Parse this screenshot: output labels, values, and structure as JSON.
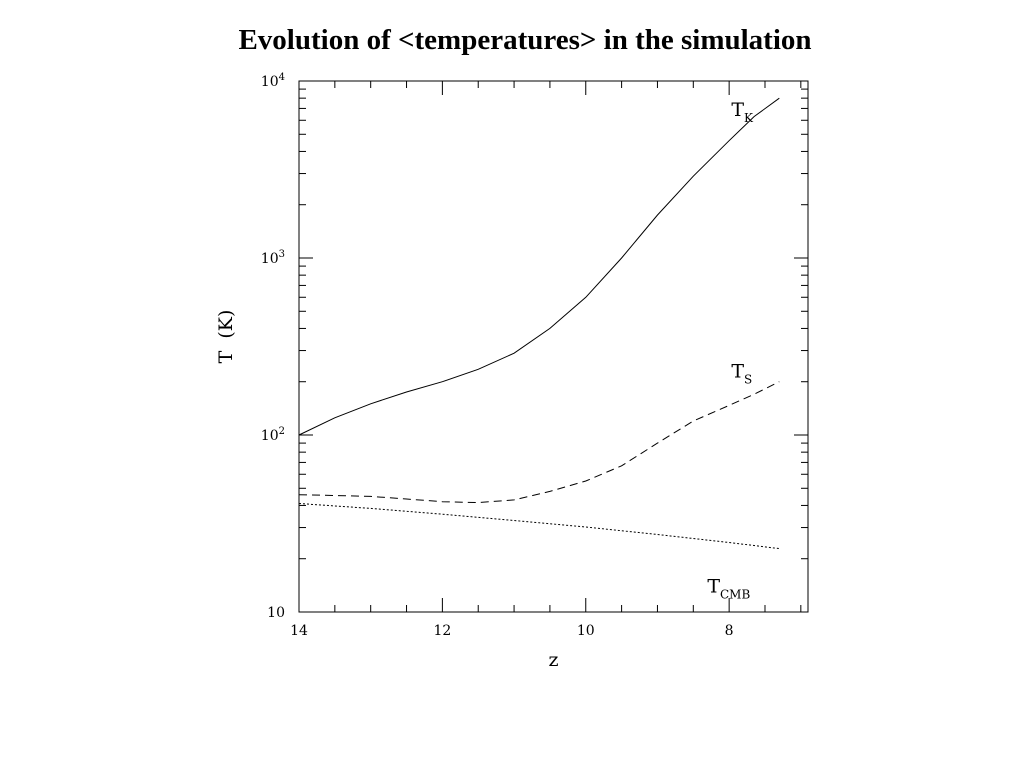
{
  "slide": {
    "title": "Evolution of  <temperatures>  in the simulation"
  },
  "chart_data": {
    "type": "line",
    "xlabel": "z",
    "ylabel": "T  (K)",
    "xlim": [
      14,
      6.9
    ],
    "ylim": [
      10,
      10000
    ],
    "y_scale": "log",
    "x_reversed": true,
    "x_ticks": [
      14,
      12,
      10,
      8
    ],
    "y_ticks": [
      {
        "value": 10,
        "base": "10",
        "exp": ""
      },
      {
        "value": 100,
        "base": "10",
        "exp": "2"
      },
      {
        "value": 1000,
        "base": "10",
        "exp": "3"
      },
      {
        "value": 10000,
        "base": "10",
        "exp": "4"
      }
    ],
    "grid": false,
    "legend": "none",
    "series": [
      {
        "name": "T_K",
        "label_main": "T",
        "label_sub": "K",
        "line_style": "solid",
        "points": [
          [
            14,
            100
          ],
          [
            13.5,
            125
          ],
          [
            13,
            150
          ],
          [
            12.5,
            175
          ],
          [
            12,
            200
          ],
          [
            11.5,
            235
          ],
          [
            11,
            290
          ],
          [
            10.5,
            400
          ],
          [
            10,
            600
          ],
          [
            9.5,
            1000
          ],
          [
            9,
            1750
          ],
          [
            8.5,
            2900
          ],
          [
            8,
            4600
          ],
          [
            7.65,
            6300
          ],
          [
            7.3,
            8000
          ]
        ]
      },
      {
        "name": "T_S",
        "label_main": "T",
        "label_sub": "S",
        "line_style": "dashed",
        "points": [
          [
            14,
            46
          ],
          [
            13.5,
            45.5
          ],
          [
            13,
            45
          ],
          [
            12.5,
            43.5
          ],
          [
            12,
            42
          ],
          [
            11.5,
            41.5
          ],
          [
            11,
            43
          ],
          [
            10.5,
            48
          ],
          [
            10,
            55
          ],
          [
            9.5,
            67
          ],
          [
            9,
            90
          ],
          [
            8.5,
            120
          ],
          [
            8,
            147
          ],
          [
            7.65,
            170
          ],
          [
            7.3,
            200
          ]
        ]
      },
      {
        "name": "T_CMB",
        "label_main": "T",
        "label_sub": "CMB",
        "line_style": "dotted",
        "points": [
          [
            14,
            41
          ],
          [
            13,
            38.5
          ],
          [
            12,
            35.7
          ],
          [
            11,
            32.9
          ],
          [
            10,
            30.2
          ],
          [
            9,
            27.4
          ],
          [
            8,
            24.7
          ],
          [
            7.3,
            22.8
          ]
        ]
      }
    ]
  }
}
